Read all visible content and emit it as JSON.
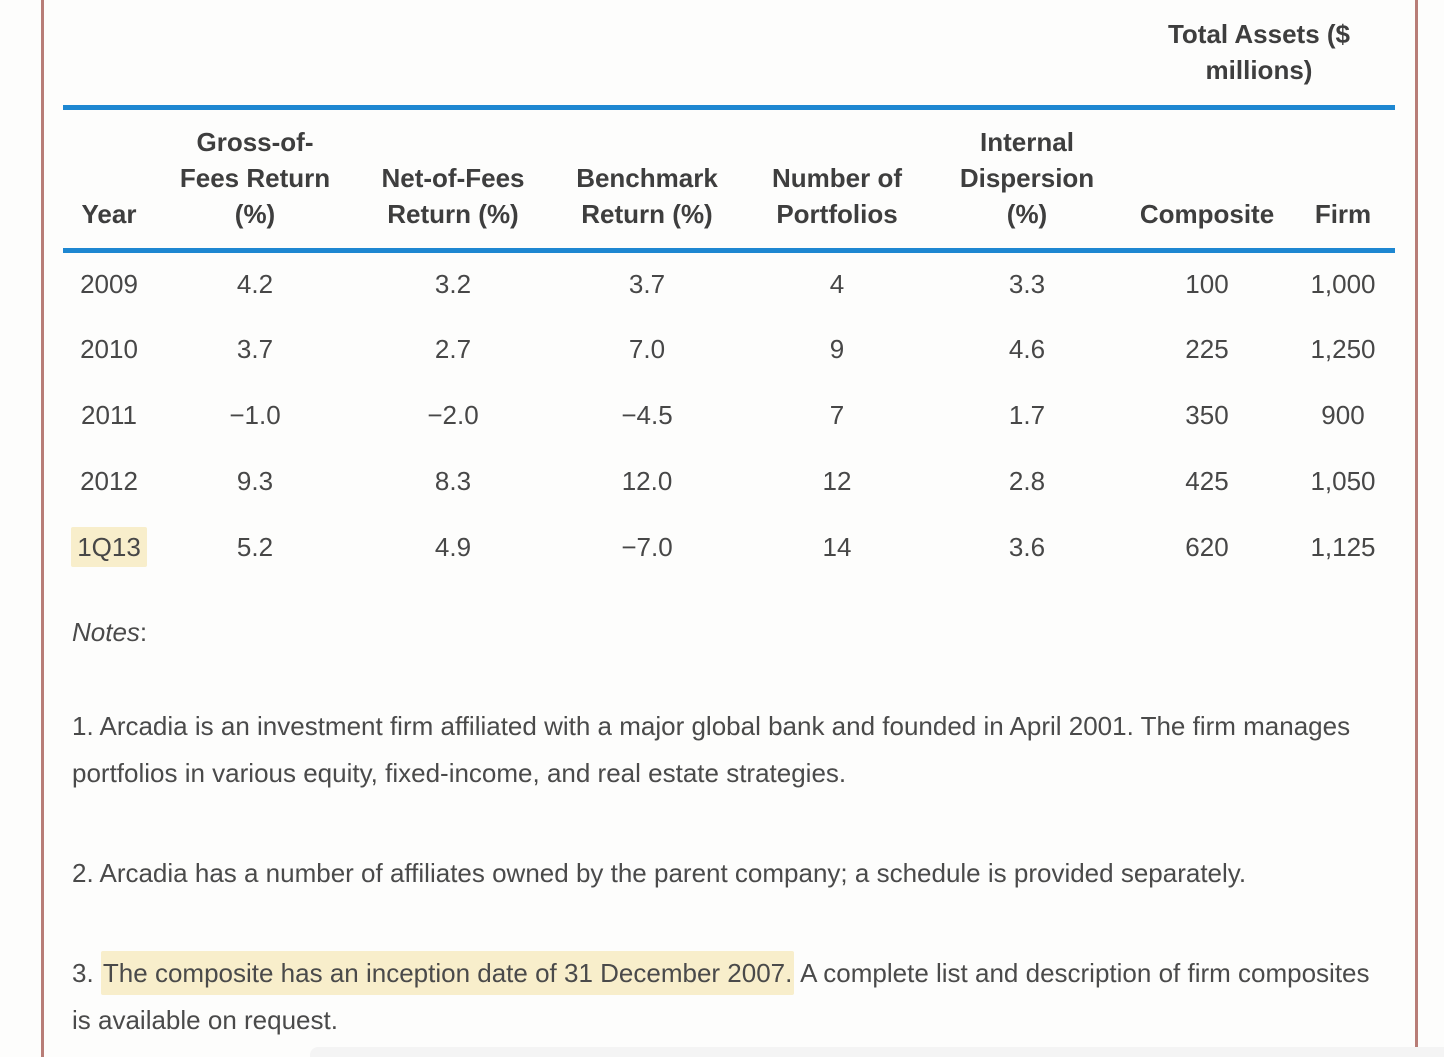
{
  "page": {
    "accent_blue": "#1e87d1",
    "highlight_yellow": "#f8eecb",
    "frame_line_color": "#b87d77"
  },
  "table": {
    "assets_header": "Total Assets ($\nmillions)",
    "columns": [
      "Year",
      "Gross-of-\nFees Return\n(%)",
      "Net-of-Fees\nReturn (%)",
      "Benchmark\nReturn (%)",
      "Number of\nPortfolios",
      "Internal\nDispersion\n(%)",
      "Composite",
      "Firm"
    ],
    "rows": [
      {
        "year": "2009",
        "highlighted": false,
        "values": [
          "4.2",
          "3.2",
          "3.7",
          "4",
          "3.3",
          "100",
          "1,000"
        ]
      },
      {
        "year": "2010",
        "highlighted": false,
        "values": [
          "3.7",
          "2.7",
          "7.0",
          "9",
          "4.6",
          "225",
          "1,250"
        ]
      },
      {
        "year": "2011",
        "highlighted": false,
        "values": [
          "−1.0",
          "−2.0",
          "−4.5",
          "7",
          "1.7",
          "350",
          "900"
        ]
      },
      {
        "year": "2012",
        "highlighted": false,
        "values": [
          "9.3",
          "8.3",
          "12.0",
          "12",
          "2.8",
          "425",
          "1,050"
        ]
      },
      {
        "year": "1Q13",
        "highlighted": true,
        "values": [
          "5.2",
          "4.9",
          "−7.0",
          "14",
          "3.6",
          "620",
          "1,125"
        ]
      }
    ]
  },
  "notes": {
    "label": "Notes",
    "colon": ":",
    "items": [
      {
        "text": "1. Arcadia is an investment firm affiliated with a major global bank and founded in April 2001. The firm manages portfolios in various equity, fixed-income, and real estate strategies."
      },
      {
        "text": "2. Arcadia has a number of affiliates owned by the parent company; a schedule is provided separately."
      },
      {
        "prefix": "3. ",
        "highlight": "The composite has an inception date of 31 December 2007.",
        "suffix": " A complete list and description of firm composites is available on request."
      }
    ]
  }
}
